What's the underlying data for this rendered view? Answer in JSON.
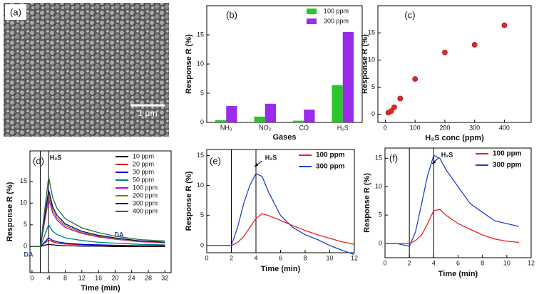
{
  "image_panel": {
    "panel_label": "(a)",
    "scale_bar": "1 μm"
  },
  "chart_data": [
    {
      "type": "bar",
      "panel_label": "(b)",
      "xlabel": "Gases",
      "ylabel": "Response R (%)",
      "categories": [
        "NH₃",
        "NO₂",
        "CO",
        "H₂S"
      ],
      "series": [
        {
          "name": "100 ppm",
          "color": "#2bc42b",
          "values": [
            0.4,
            1.0,
            0.3,
            6.4
          ]
        },
        {
          "name": "300 ppm",
          "color": "#9a2bea",
          "values": [
            2.8,
            3.2,
            2.2,
            15.5
          ]
        }
      ],
      "ylim": [
        0,
        20
      ],
      "yticks": [
        0,
        5,
        10,
        15
      ],
      "legend": "upper right"
    },
    {
      "type": "scatter",
      "panel_label": "(c)",
      "xlabel": "H₂S conc (ppm)",
      "ylabel": "Response R (%)",
      "x": [
        10,
        20,
        30,
        50,
        100,
        200,
        300,
        400
      ],
      "series": [
        {
          "color": "#e02828",
          "values": [
            0.3,
            0.6,
            1.3,
            2.9,
            6.5,
            11.4,
            12.8,
            16.4
          ]
        }
      ],
      "xlim": [
        -25,
        490
      ],
      "xticks": [
        0,
        100,
        200,
        300,
        400
      ],
      "ylim": [
        -1.5,
        20
      ],
      "yticks": [
        0,
        5,
        10,
        15
      ]
    },
    {
      "type": "line",
      "panel_label": "(d)",
      "xlabel": "Time (min)",
      "ylabel": "Response R (%)",
      "annotations": [
        "H₂S",
        "DA",
        "DA"
      ],
      "vlines": [
        2,
        4
      ],
      "x": [
        0,
        2,
        3,
        4,
        5,
        6,
        8,
        12,
        16,
        20,
        26,
        32
      ],
      "series": [
        {
          "name": "10 ppm",
          "color": "#000000",
          "values": [
            0,
            0,
            0.3,
            0.5,
            0.4,
            0.3,
            0.2,
            0.1,
            0.1,
            0,
            0,
            0
          ]
        },
        {
          "name": "20 ppm",
          "color": "#e00000",
          "values": [
            0,
            0,
            0.8,
            1.5,
            1.1,
            0.8,
            0.6,
            0.4,
            0.3,
            0.2,
            0.1,
            0.1
          ]
        },
        {
          "name": "30 ppm",
          "color": "#0000e0",
          "values": [
            0,
            0,
            1,
            2,
            1.4,
            1.1,
            0.8,
            0.5,
            0.4,
            0.3,
            0.2,
            0.2
          ]
        },
        {
          "name": "50 ppm",
          "color": "#008080",
          "values": [
            0,
            0,
            2.5,
            5,
            3.5,
            2.8,
            2,
            1.4,
            1,
            0.8,
            0.5,
            0.4
          ]
        },
        {
          "name": "100 ppm",
          "color": "#d000d0",
          "values": [
            0,
            0,
            5.5,
            11,
            7.7,
            6.1,
            4.4,
            3,
            2.2,
            1.7,
            1.1,
            0.9
          ]
        },
        {
          "name": "200 ppm",
          "color": "#808000",
          "values": [
            0,
            0,
            6,
            12,
            8.4,
            6.6,
            4.8,
            3.2,
            2.4,
            1.8,
            1.2,
            1
          ]
        },
        {
          "name": "300 ppm",
          "color": "#000080",
          "values": [
            0,
            0,
            6.5,
            13,
            9.1,
            7.2,
            5.2,
            3.5,
            2.6,
            2,
            1.3,
            1
          ]
        },
        {
          "name": "400 ppm",
          "color": "#2f6b2f",
          "values": [
            0,
            0,
            8,
            16,
            11.2,
            8.8,
            6.4,
            4.3,
            3.2,
            2.4,
            1.6,
            1.3
          ]
        }
      ],
      "xlim": [
        -0.5,
        33.5
      ],
      "xticks": [
        0,
        4,
        8,
        12,
        16,
        20,
        24,
        28,
        32
      ],
      "ylim": [
        -6,
        22
      ],
      "yticks": [
        0,
        5,
        10,
        15
      ],
      "legend": "upper right"
    },
    {
      "type": "line",
      "panel_label": "(e)",
      "xlabel": "Time (min)",
      "ylabel": "Response R (%)",
      "annotations": [
        "H₂S"
      ],
      "vlines": [
        2,
        4
      ],
      "x": [
        0,
        1,
        2,
        2.5,
        3,
        3.5,
        4,
        4.5,
        5,
        6,
        7,
        8,
        9,
        10,
        11,
        12
      ],
      "series": [
        {
          "name": "100 ppm",
          "color": "#ee2020",
          "values": [
            0,
            0,
            0,
            0.5,
            1.5,
            3,
            4.5,
            5.3,
            5,
            4.2,
            3.3,
            2.5,
            1.8,
            1.2,
            0.6,
            0.2
          ]
        },
        {
          "name": "300 ppm",
          "color": "#2040d0",
          "values": [
            0,
            0,
            0,
            3,
            7,
            10,
            12,
            11.5,
            9,
            5,
            3,
            1.8,
            1,
            0,
            -0.8,
            -1.5
          ]
        }
      ],
      "xlim": [
        0,
        12
      ],
      "xticks": [
        0,
        2,
        4,
        6,
        8,
        10,
        12
      ],
      "ylim": [
        -1.2,
        16
      ],
      "yticks": [
        0,
        5,
        10,
        15
      ],
      "legend": "upper right"
    },
    {
      "type": "line",
      "panel_label": "(f)",
      "xlabel": "Time (min)",
      "ylabel": "Response R (%)",
      "annotations": [
        "H₂S"
      ],
      "vlines": [
        2,
        4
      ],
      "x": [
        0,
        1,
        2,
        2.5,
        3,
        3.5,
        4,
        4.5,
        5,
        6,
        7,
        8,
        9,
        10,
        11
      ],
      "series": [
        {
          "name": "100 ppm",
          "color": "#ee2020",
          "values": [
            0,
            0,
            0,
            0.5,
            1.5,
            3.5,
            5.8,
            6,
            5,
            3.5,
            2.5,
            1.5,
            0.8,
            0.4,
            0.2
          ]
        },
        {
          "name": "300 ppm",
          "color": "#2040d0",
          "values": [
            0,
            0,
            -0.5,
            2,
            7,
            12,
            15.5,
            15,
            13,
            10,
            7,
            5.5,
            4,
            3.5,
            3
          ]
        }
      ],
      "xlim": [
        0,
        12
      ],
      "xticks": [
        0,
        2,
        4,
        6,
        8,
        10,
        12
      ],
      "ylim": [
        -2.5,
        16.8
      ],
      "yticks": [
        0,
        5,
        10,
        15
      ],
      "legend": "upper right"
    }
  ]
}
